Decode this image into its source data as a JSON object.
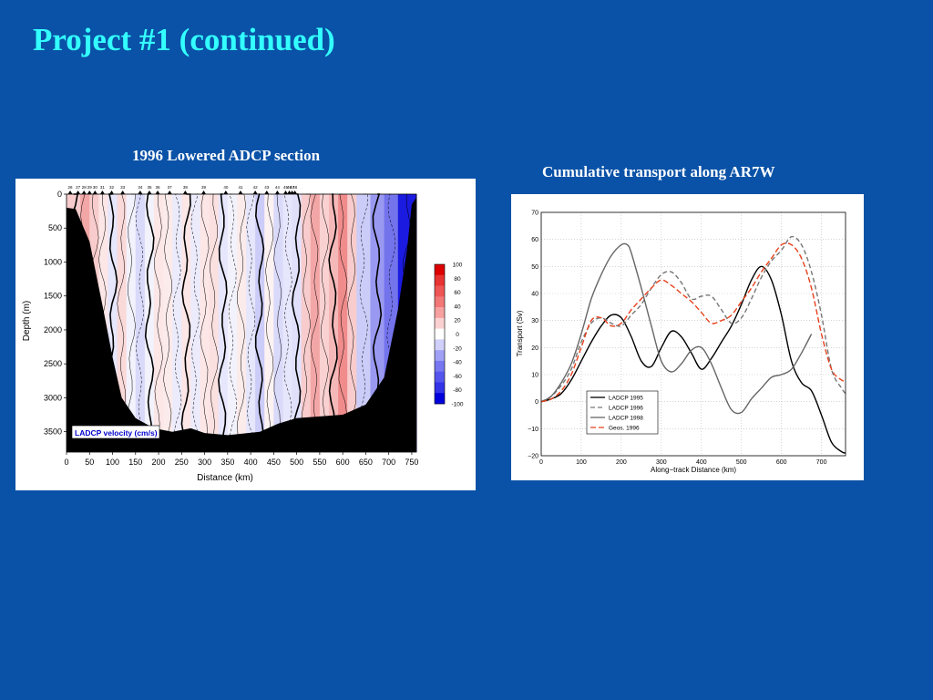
{
  "slide": {
    "title": "Project #1 (continued)"
  },
  "chart_data": [
    {
      "type": "heatmap",
      "caption": "1996 Lowered ADCP section",
      "xlabel": "Distance (km)",
      "ylabel": "Depth (m)",
      "xlim": [
        0,
        760
      ],
      "ylim": [
        3800,
        0
      ],
      "x_ticks": [
        0,
        50,
        100,
        150,
        200,
        250,
        300,
        350,
        400,
        450,
        500,
        550,
        600,
        650,
        700,
        750
      ],
      "y_ticks": [
        0,
        500,
        1000,
        1500,
        2000,
        2500,
        3000,
        3500
      ],
      "station_labels": [
        {
          "label": "26",
          "x": 8
        },
        {
          "label": "27",
          "x": 25
        },
        {
          "label": "28",
          "x": 38
        },
        {
          "label": "29",
          "x": 50
        },
        {
          "label": "30",
          "x": 62
        },
        {
          "label": "31",
          "x": 78
        },
        {
          "label": "32",
          "x": 98
        },
        {
          "label": "33",
          "x": 122
        },
        {
          "label": "34",
          "x": 160
        },
        {
          "label": "35",
          "x": 180
        },
        {
          "label": "36",
          "x": 198
        },
        {
          "label": "37",
          "x": 224
        },
        {
          "label": "38",
          "x": 258
        },
        {
          "label": "39",
          "x": 298
        },
        {
          "label": "40",
          "x": 346
        },
        {
          "label": "41",
          "x": 378
        },
        {
          "label": "42",
          "x": 410
        },
        {
          "label": "43",
          "x": 435
        },
        {
          "label": "44",
          "x": 458
        },
        {
          "label": "45",
          "x": 476
        },
        {
          "label": "46",
          "x": 484
        },
        {
          "label": "47",
          "x": 490
        },
        {
          "label": "48",
          "x": 496
        }
      ],
      "colorbar": {
        "ticks": [
          100,
          80,
          60,
          40,
          20,
          0,
          -20,
          -40,
          -60,
          -80,
          -100
        ],
        "colors_high_to_low": [
          "#dd0000",
          "#e83333",
          "#ee5555",
          "#f27777",
          "#f6a0a0",
          "#fbd0d0",
          "#ffffff",
          "#d0d0fb",
          "#a0a0f6",
          "#7777f2",
          "#5555ee",
          "#3333e8",
          "#0000dd"
        ]
      },
      "legend": "LADCP velocity (cm/s)",
      "color_scale_range": [
        -100,
        100
      ],
      "bottom_profile_depth": [
        [
          0,
          200
        ],
        [
          20,
          220
        ],
        [
          50,
          700
        ],
        [
          80,
          1700
        ],
        [
          100,
          2400
        ],
        [
          120,
          3000
        ],
        [
          150,
          3300
        ],
        [
          190,
          3450
        ],
        [
          230,
          3500
        ],
        [
          270,
          3450
        ],
        [
          300,
          3520
        ],
        [
          350,
          3550
        ],
        [
          420,
          3500
        ],
        [
          460,
          3380
        ],
        [
          500,
          3300
        ],
        [
          560,
          3270
        ],
        [
          600,
          3250
        ],
        [
          650,
          3100
        ],
        [
          690,
          2700
        ],
        [
          720,
          1700
        ],
        [
          740,
          800
        ],
        [
          750,
          150
        ],
        [
          760,
          50
        ]
      ],
      "velocity_bands": [
        {
          "x0": 0,
          "x1": 30,
          "v": 20
        },
        {
          "x0": 30,
          "x1": 50,
          "v": 35
        },
        {
          "x0": 50,
          "x1": 70,
          "v": 20
        },
        {
          "x0": 70,
          "x1": 90,
          "v": 10
        },
        {
          "x0": 90,
          "x1": 110,
          "v": -10
        },
        {
          "x0": 110,
          "x1": 130,
          "v": 15
        },
        {
          "x0": 130,
          "x1": 150,
          "v": -5
        },
        {
          "x0": 150,
          "x1": 170,
          "v": -15
        },
        {
          "x0": 170,
          "x1": 190,
          "v": -5
        },
        {
          "x0": 190,
          "x1": 210,
          "v": 10
        },
        {
          "x0": 210,
          "x1": 230,
          "v": 8
        },
        {
          "x0": 230,
          "x1": 250,
          "v": -8
        },
        {
          "x0": 250,
          "x1": 270,
          "v": 10
        },
        {
          "x0": 270,
          "x1": 290,
          "v": -8
        },
        {
          "x0": 290,
          "x1": 310,
          "v": 10
        },
        {
          "x0": 310,
          "x1": 330,
          "v": 12
        },
        {
          "x0": 330,
          "x1": 350,
          "v": -10
        },
        {
          "x0": 350,
          "x1": 370,
          "v": -5
        },
        {
          "x0": 370,
          "x1": 390,
          "v": 8
        },
        {
          "x0": 390,
          "x1": 410,
          "v": -10
        },
        {
          "x0": 410,
          "x1": 430,
          "v": -20
        },
        {
          "x0": 430,
          "x1": 450,
          "v": 5
        },
        {
          "x0": 450,
          "x1": 470,
          "v": -15
        },
        {
          "x0": 470,
          "x1": 490,
          "v": -10
        },
        {
          "x0": 490,
          "x1": 510,
          "v": -12
        },
        {
          "x0": 510,
          "x1": 530,
          "v": 20
        },
        {
          "x0": 530,
          "x1": 550,
          "v": 35
        },
        {
          "x0": 550,
          "x1": 570,
          "v": 18
        },
        {
          "x0": 570,
          "x1": 590,
          "v": 28
        },
        {
          "x0": 590,
          "x1": 610,
          "v": 45
        },
        {
          "x0": 610,
          "x1": 630,
          "v": 20
        },
        {
          "x0": 630,
          "x1": 660,
          "v": -20
        },
        {
          "x0": 660,
          "x1": 690,
          "v": -40
        },
        {
          "x0": 690,
          "x1": 720,
          "v": -55
        },
        {
          "x0": 720,
          "x1": 760,
          "v": -90
        }
      ]
    },
    {
      "type": "line",
      "caption": "Cumulative transport along AR7W",
      "xlabel": "Along−track Distance (km)",
      "ylabel": "Transport (Sv)",
      "xlim": [
        0,
        760
      ],
      "ylim": [
        -20,
        70
      ],
      "x_ticks": [
        0,
        100,
        200,
        300,
        400,
        500,
        600,
        700
      ],
      "y_ticks": [
        70,
        60,
        50,
        40,
        30,
        20,
        10,
        0,
        -10,
        -20
      ],
      "grid": true,
      "legend_position": "bottom-left",
      "series": [
        {
          "name": "LADCP 1995",
          "color": "#000000",
          "dash": "",
          "x": [
            0,
            25,
            50,
            75,
            100,
            125,
            150,
            175,
            200,
            225,
            250,
            275,
            300,
            325,
            350,
            375,
            400,
            425,
            450,
            475,
            500,
            525,
            550,
            575,
            600,
            625,
            650,
            675,
            700,
            725,
            750,
            760
          ],
          "y": [
            0,
            1,
            3,
            8,
            15,
            22,
            28,
            32,
            31,
            24,
            15,
            13,
            20,
            26,
            24,
            18,
            12,
            16,
            22,
            28,
            36,
            45,
            50,
            45,
            32,
            15,
            7,
            4,
            -5,
            -15,
            -18.5,
            -19
          ]
        },
        {
          "name": "LADCP 1996",
          "color": "#777777",
          "dash": "5,3",
          "x": [
            0,
            25,
            50,
            75,
            100,
            125,
            150,
            175,
            200,
            225,
            250,
            275,
            300,
            325,
            350,
            375,
            400,
            425,
            450,
            475,
            500,
            525,
            550,
            575,
            600,
            625,
            650,
            675,
            700,
            725,
            750,
            760
          ],
          "y": [
            0,
            2,
            6,
            12,
            22,
            29,
            31,
            29,
            28,
            32,
            36,
            42,
            47,
            48,
            44,
            38,
            39,
            39,
            34,
            29,
            31,
            38,
            46,
            52,
            56,
            61,
            58,
            48,
            32,
            12,
            5,
            3
          ]
        },
        {
          "name": "LADCP 1998",
          "color": "#666666",
          "dash": "",
          "x": [
            0,
            25,
            50,
            75,
            100,
            125,
            150,
            175,
            200,
            215,
            225,
            250,
            275,
            300,
            325,
            350,
            375,
            400,
            425,
            450,
            475,
            500,
            525,
            550,
            575,
            600,
            625,
            650,
            675
          ],
          "y": [
            0,
            2,
            7,
            14,
            25,
            38,
            47,
            54,
            58,
            58,
            55,
            42,
            28,
            15,
            11,
            14,
            19,
            20,
            14,
            5,
            -3,
            -4,
            1,
            5,
            9,
            10,
            12,
            18,
            25
          ]
        },
        {
          "name": "Geos. 1996",
          "color": "#e8401c",
          "dash": "6,3",
          "x": [
            0,
            25,
            50,
            75,
            100,
            125,
            150,
            175,
            200,
            225,
            250,
            275,
            300,
            325,
            350,
            375,
            400,
            425,
            450,
            475,
            500,
            525,
            550,
            575,
            600,
            625,
            650,
            675,
            700,
            725,
            750,
            760
          ],
          "y": [
            0,
            1,
            4,
            10,
            20,
            30,
            31,
            28,
            29,
            34,
            38,
            42,
            45,
            43,
            40,
            37,
            33,
            29,
            30,
            32,
            37,
            42,
            48,
            53,
            58,
            58,
            53,
            42,
            25,
            12,
            8,
            8
          ]
        }
      ]
    }
  ]
}
